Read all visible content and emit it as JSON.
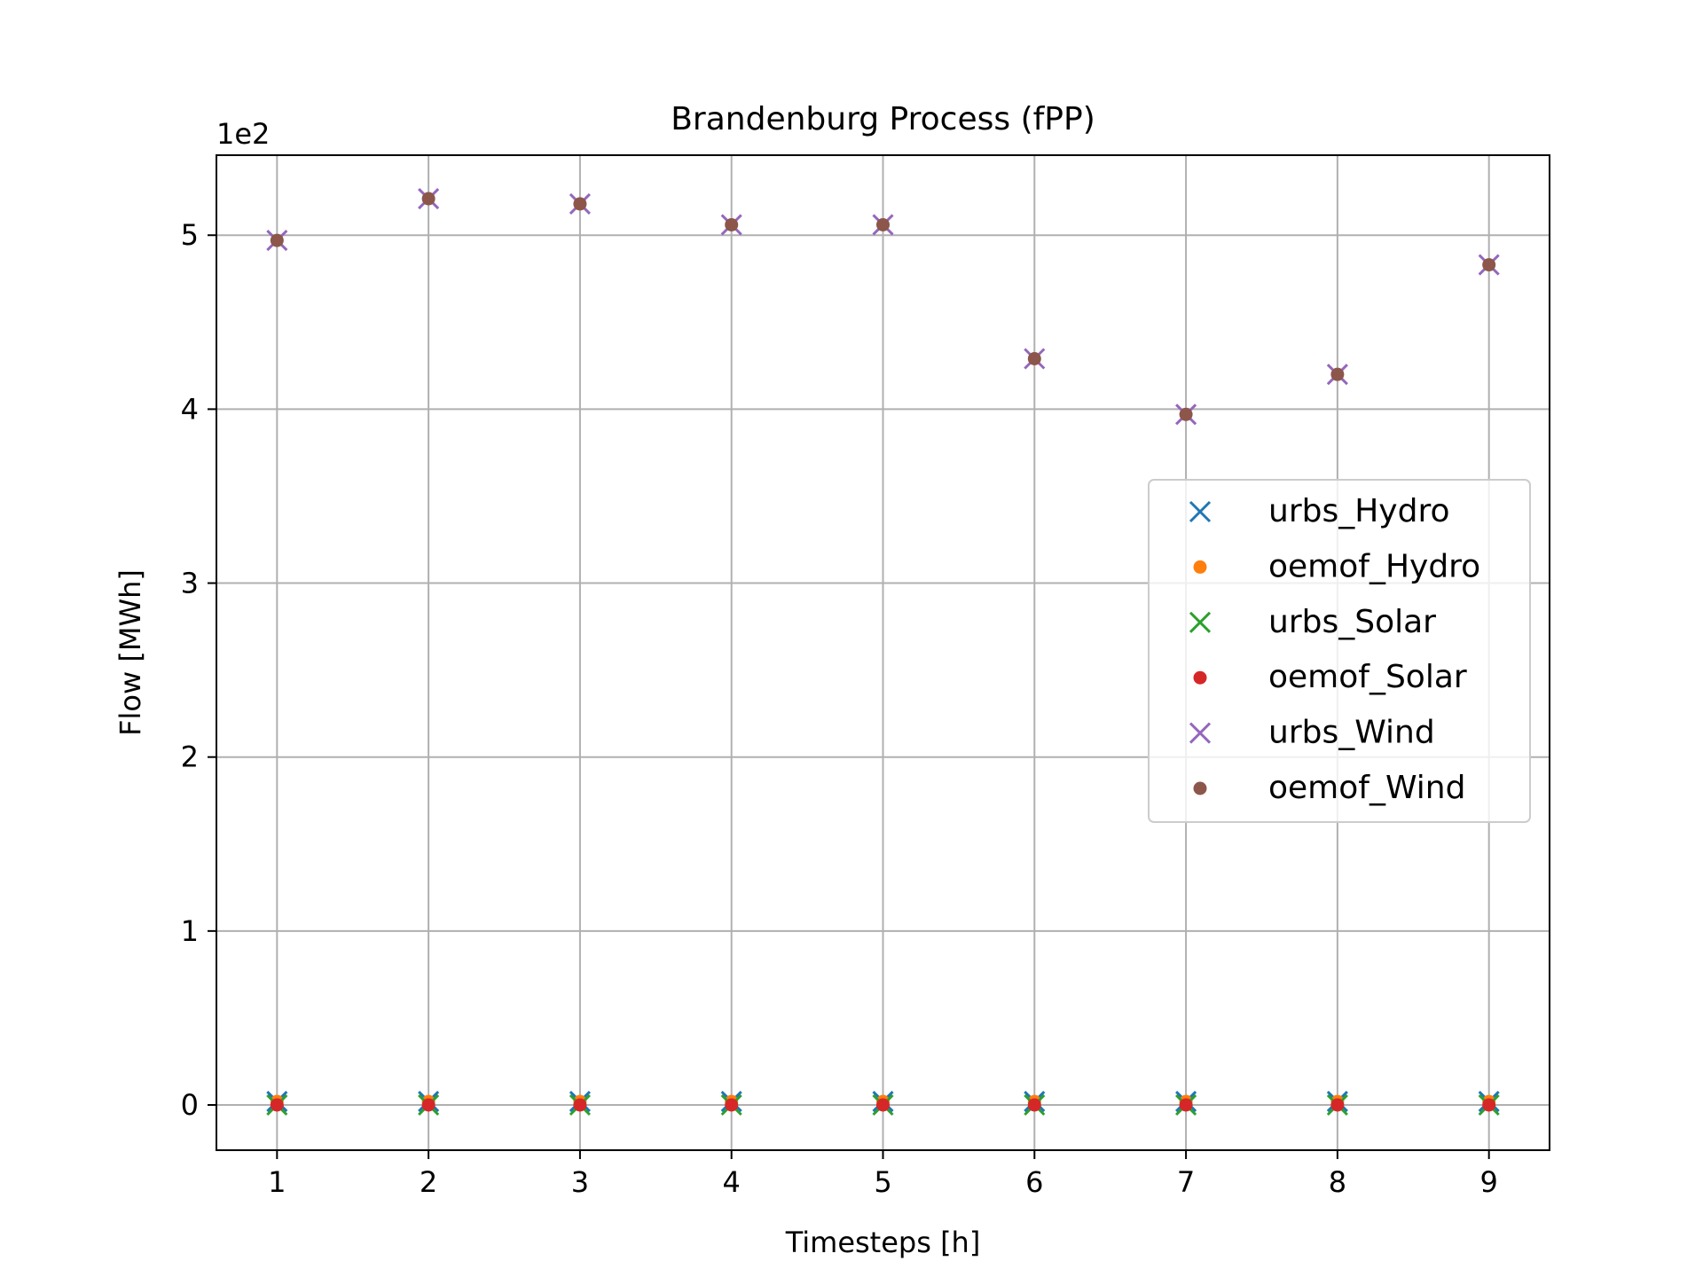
{
  "chart_data": {
    "type": "scatter",
    "title": "Brandenburg Process (fPP)",
    "xlabel": "Timesteps [h]",
    "ylabel": "Flow [MWh]",
    "y_offset_label": "1e2",
    "xlim": [
      0.6,
      9.4
    ],
    "ylim": [
      -0.26,
      5.46
    ],
    "x_ticks": [
      1,
      2,
      3,
      4,
      5,
      6,
      7,
      8,
      9
    ],
    "y_ticks": [
      0,
      1,
      2,
      3,
      4,
      5
    ],
    "x_tick_labels": [
      "1",
      "2",
      "3",
      "4",
      "5",
      "6",
      "7",
      "8",
      "9"
    ],
    "y_tick_labels": [
      "0",
      "1",
      "2",
      "3",
      "4",
      "5"
    ],
    "grid": true,
    "legend_position": "center-right",
    "x": [
      1,
      2,
      3,
      4,
      5,
      6,
      7,
      8,
      9
    ],
    "series": [
      {
        "name": "urbs_Hydro",
        "marker": "x",
        "color": "#1f77b4",
        "values": [
          0.02,
          0.02,
          0.02,
          0.02,
          0.02,
          0.02,
          0.02,
          0.02,
          0.02
        ]
      },
      {
        "name": "oemof_Hydro",
        "marker": "o",
        "color": "#ff7f0e",
        "values": [
          0.02,
          0.02,
          0.02,
          0.02,
          0.02,
          0.02,
          0.02,
          0.02,
          0.02
        ]
      },
      {
        "name": "urbs_Solar",
        "marker": "x",
        "color": "#2ca02c",
        "values": [
          0,
          0,
          0,
          0,
          0,
          0,
          0,
          0,
          0
        ]
      },
      {
        "name": "oemof_Solar",
        "marker": "o",
        "color": "#d62728",
        "values": [
          0,
          0,
          0,
          0,
          0,
          0,
          0,
          0,
          0
        ]
      },
      {
        "name": "urbs_Wind",
        "marker": "x",
        "color": "#9467bd",
        "values": [
          4.97,
          5.21,
          5.18,
          5.06,
          5.06,
          4.29,
          3.97,
          4.2,
          4.83
        ]
      },
      {
        "name": "oemof_Wind",
        "marker": "o",
        "color": "#8c564b",
        "values": [
          4.97,
          5.21,
          5.18,
          5.06,
          5.06,
          4.29,
          3.97,
          4.2,
          4.83
        ]
      }
    ]
  }
}
